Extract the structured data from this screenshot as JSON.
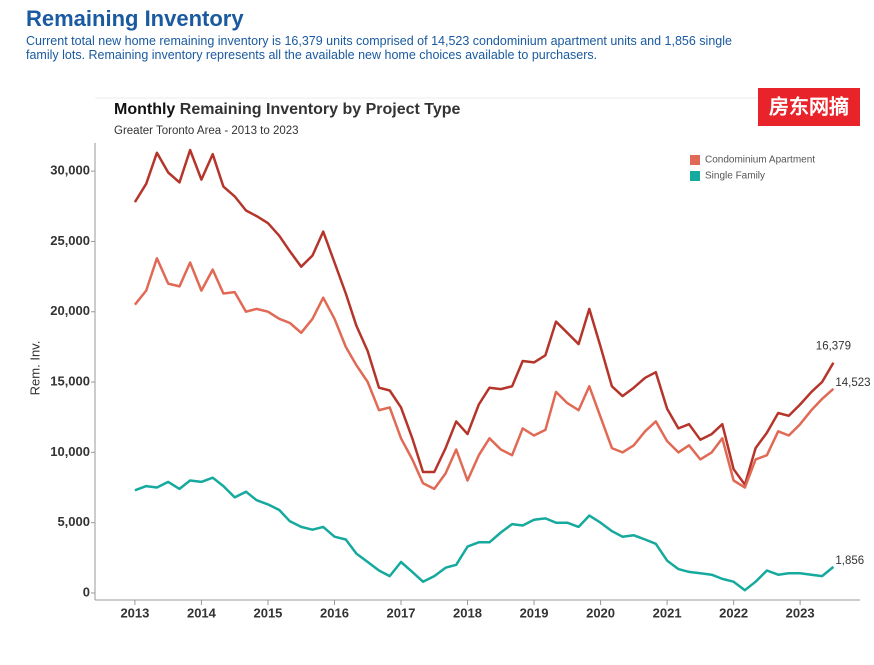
{
  "header": {
    "title": "Remaining Inventory",
    "description": "Current total new home remaining inventory is 16,379 units comprised of 14,523 condominium apartment units and 1,856 single family lots. Remaining inventory represents all the available new home choices available to purchasers."
  },
  "watermark": "房东网摘",
  "chart_data": {
    "type": "line",
    "title_bold": "Monthly",
    "title": "Remaining Inventory by Project Type",
    "subtitle": "Greater Toronto Area - 2013 to 2023",
    "y_label": "Rem. Inv.",
    "legend": "top-right",
    "x": [
      2013.0,
      2013.17,
      2013.33,
      2013.5,
      2013.67,
      2013.83,
      2014.0,
      2014.17,
      2014.33,
      2014.5,
      2014.67,
      2014.83,
      2015.0,
      2015.17,
      2015.33,
      2015.5,
      2015.67,
      2015.83,
      2016.0,
      2016.17,
      2016.33,
      2016.5,
      2016.67,
      2016.83,
      2017.0,
      2017.17,
      2017.33,
      2017.5,
      2017.67,
      2017.83,
      2018.0,
      2018.17,
      2018.33,
      2018.5,
      2018.67,
      2018.83,
      2019.0,
      2019.17,
      2019.33,
      2019.5,
      2019.67,
      2019.83,
      2020.0,
      2020.17,
      2020.33,
      2020.5,
      2020.67,
      2020.83,
      2021.0,
      2021.17,
      2021.33,
      2021.5,
      2021.67,
      2021.83,
      2022.0,
      2022.17,
      2022.33,
      2022.5,
      2022.67,
      2022.83,
      2023.0,
      2023.17,
      2023.33,
      2023.5
    ],
    "series": [
      {
        "color": "#b5352b",
        "values": [
          27800,
          29100,
          31300,
          29900,
          29200,
          31500,
          29400,
          31200,
          28900,
          28200,
          27200,
          26800,
          26300,
          25400,
          24300,
          23200,
          24000,
          25700,
          23500,
          21300,
          19000,
          17200,
          14600,
          14400,
          13200,
          11000,
          8600,
          8600,
          10300,
          12200,
          11300,
          13400,
          14600,
          14500,
          14700,
          16500,
          16400,
          16900,
          19300,
          18500,
          17700,
          20200,
          17500,
          14700,
          14000,
          14600,
          15300,
          15700,
          13100,
          11700,
          12000,
          10900,
          11300,
          12000,
          8800,
          7700,
          10300,
          11400,
          12800,
          12600,
          13400,
          14300,
          15000,
          16379
        ],
        "end_label": "16,379"
      },
      {
        "name": "Condominium Apartment",
        "color": "#e06a55",
        "values": [
          20500,
          21500,
          23800,
          22000,
          21800,
          23500,
          21500,
          23000,
          21300,
          21400,
          20000,
          20200,
          20000,
          19500,
          19200,
          18500,
          19500,
          21000,
          19500,
          17500,
          16200,
          15000,
          13000,
          13200,
          11000,
          9500,
          7800,
          7400,
          8500,
          10200,
          8000,
          9800,
          11000,
          10200,
          9800,
          11700,
          11200,
          11600,
          14300,
          13500,
          13000,
          14700,
          12500,
          10300,
          10000,
          10500,
          11500,
          12200,
          10800,
          10000,
          10500,
          9500,
          10000,
          11000,
          8000,
          7500,
          9500,
          9800,
          11500,
          11200,
          12000,
          13000,
          13800,
          14523
        ],
        "end_label": "14,523"
      },
      {
        "name": "Single Family",
        "color": "#16a99e",
        "values": [
          7300,
          7600,
          7500,
          7900,
          7400,
          8000,
          7900,
          8200,
          7600,
          6800,
          7200,
          6600,
          6300,
          5900,
          5100,
          4700,
          4500,
          4700,
          4000,
          3800,
          2800,
          2200,
          1600,
          1200,
          2200,
          1500,
          800,
          1200,
          1800,
          2000,
          3300,
          3600,
          3600,
          4300,
          4900,
          4800,
          5200,
          5300,
          5000,
          5000,
          4700,
          5500,
          5000,
          4400,
          4000,
          4100,
          3800,
          3500,
          2300,
          1700,
          1500,
          1400,
          1300,
          1000,
          800,
          200,
          800,
          1600,
          1300,
          1400,
          1400,
          1300,
          1200,
          1856
        ],
        "end_label": "1,856"
      }
    ],
    "xlim": [
      2012.4,
      2023.9
    ],
    "xticks": [
      2013,
      2014,
      2015,
      2016,
      2017,
      2018,
      2019,
      2020,
      2021,
      2022,
      2023
    ],
    "ylim": [
      -500,
      32000
    ],
    "yticks": [
      0,
      {
        "value": 5000,
        "label": "5,000"
      },
      {
        "value": 10000,
        "label": "10,000"
      },
      {
        "value": 15000,
        "label": "15,000"
      },
      {
        "value": 20000,
        "label": "20,000"
      },
      {
        "value": 25000,
        "label": "25,000"
      },
      {
        "value": 30000,
        "label": "30,000"
      }
    ]
  }
}
